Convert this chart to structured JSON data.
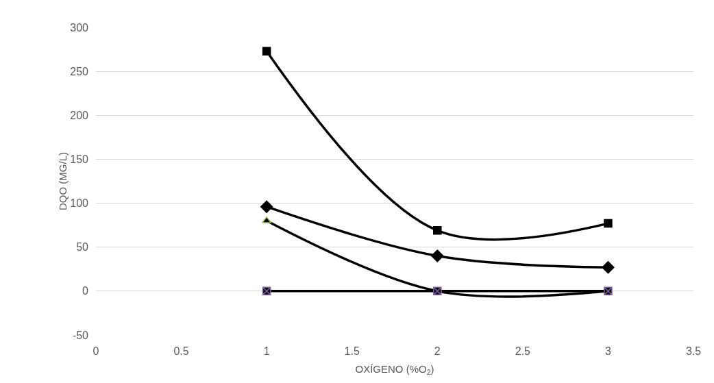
{
  "chart_data": {
    "type": "line",
    "xlabel": "OXÍGENO (%O$_{2}$)",
    "ylabel": "DQO (MG/L)",
    "x": [
      1,
      2,
      3
    ],
    "xlim": [
      0,
      3.5
    ],
    "xticks": [
      0,
      0.5,
      1,
      1.5,
      2,
      2.5,
      3,
      3.5
    ],
    "ylim": [
      -50,
      300
    ],
    "yticks": [
      -50,
      0,
      50,
      100,
      150,
      200,
      250,
      300
    ],
    "grid": "y",
    "legend": false,
    "series": [
      {
        "color": "#000000",
        "marker": "diamond",
        "values": [
          96,
          40,
          27
        ]
      },
      {
        "color": "#000000",
        "marker": "square",
        "values": [
          273,
          69,
          77
        ]
      },
      {
        "color": "#000000",
        "marker": "triangle",
        "values": [
          80,
          0,
          0
        ]
      },
      {
        "color": "#000000",
        "marker": "cross",
        "values": [
          0,
          0,
          0
        ]
      }
    ]
  }
}
